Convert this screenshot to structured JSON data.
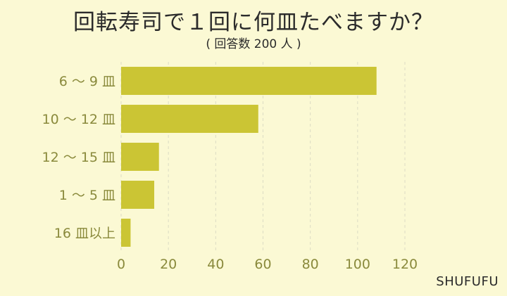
{
  "chart_data": {
    "type": "bar",
    "orientation": "horizontal",
    "title": "回転寿司で１回に何皿たべますか？",
    "subtitle": "( 回答数 200 人 )",
    "categories": [
      "6 ～ 9 皿",
      "10 ～ 12 皿",
      "12 ～ 15 皿",
      "1 ～ 5 皿",
      "16 皿以上"
    ],
    "values": [
      108,
      58,
      16,
      14,
      4
    ],
    "xlim": [
      0,
      120
    ],
    "xticks": [
      "0",
      "20",
      "40",
      "60",
      "80",
      "100",
      "120"
    ],
    "grid": true,
    "bar_color": "#cbc534",
    "grid_color": "#dcdcc4",
    "label_color": "#8a8a3c"
  },
  "watermark": "SHUFUFU"
}
